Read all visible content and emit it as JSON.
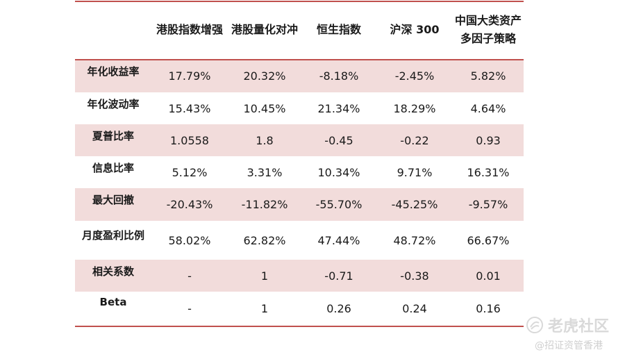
{
  "table": {
    "headers": [
      "",
      "港股指数增强",
      "港股量化对冲",
      "恒生指数",
      "沪深 300",
      "中国大类资产\n多因子策略"
    ],
    "header_lines": {
      "col5_line1": "中国大类资产",
      "col5_line2": "多因子策略"
    },
    "rows": [
      {
        "label": "年化收益率",
        "values": [
          "17.79%",
          "20.32%",
          "-8.18%",
          "-2.45%",
          "5.82%"
        ]
      },
      {
        "label": "年化波动率",
        "values": [
          "15.43%",
          "10.45%",
          "21.34%",
          "18.29%",
          "4.64%"
        ]
      },
      {
        "label": "夏普比率",
        "values": [
          "1.0558",
          "1.8",
          "-0.45",
          "-0.22",
          "0.93"
        ]
      },
      {
        "label": "信息比率",
        "values": [
          "5.12%",
          "3.31%",
          "10.34%",
          "9.71%",
          "16.31%"
        ]
      },
      {
        "label": "最大回撤",
        "values": [
          "-20.43%",
          "-11.82%",
          "-55.70%",
          "-45.25%",
          "-9.57%"
        ]
      },
      {
        "label": "月度盈利比例",
        "values": [
          "58.02%",
          "62.82%",
          "47.44%",
          "48.72%",
          "66.67%"
        ]
      },
      {
        "label": "相关系数",
        "values": [
          "-",
          "1",
          "-0.71",
          "-0.38",
          "0.01"
        ]
      },
      {
        "label": "Beta",
        "values": [
          "-",
          "1",
          "0.26",
          "0.24",
          "0.16"
        ]
      }
    ]
  },
  "watermark": {
    "brand": "老虎社区",
    "handle": "@招证资管香港",
    "logo_icon": "tiger-logo-icon"
  },
  "colors": {
    "rule": "#c0504d",
    "shade": "#f2dcdb",
    "watermark": "#d9d9d9"
  }
}
